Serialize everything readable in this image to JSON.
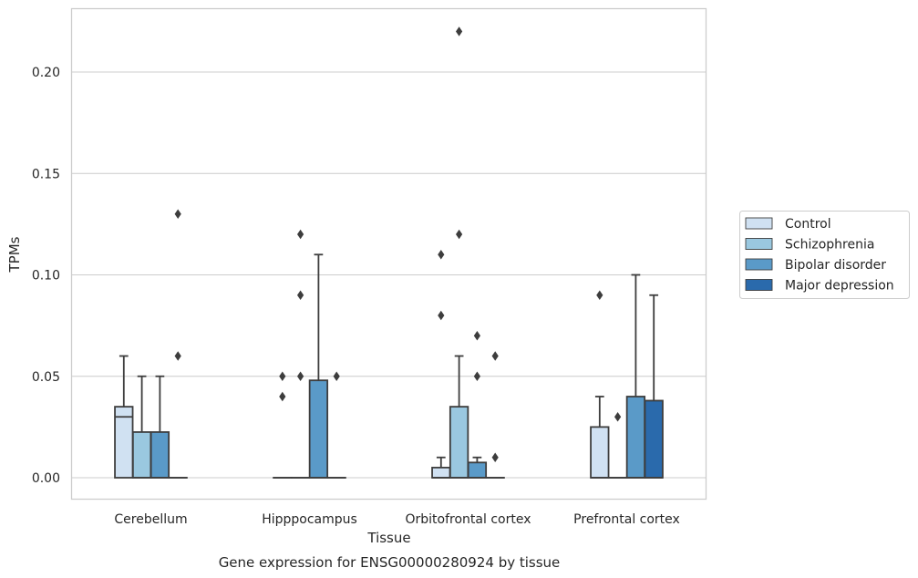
{
  "chart_data": {
    "type": "box",
    "caption": "Gene expression for ENSG00000280924 by tissue",
    "xlabel": "Tissue",
    "ylabel": "TPMs",
    "ylim": [
      -0.011,
      0.232
    ],
    "yticks": [
      0.0,
      0.05,
      0.1,
      0.15,
      0.2
    ],
    "ytick_labels": [
      "0.00",
      "0.05",
      "0.10",
      "0.15",
      "0.20"
    ],
    "grid": "horizontal",
    "legend_position": "right",
    "categories": [
      "Cerebellum",
      "Hipppocampus",
      "Orbitofrontal cortex",
      "Prefrontal cortex"
    ],
    "series": [
      {
        "name": "Control",
        "color": "#d0e1f2",
        "boxes": [
          {
            "q1": 0.0,
            "median": 0.03,
            "q3": 0.035,
            "whisker_low": 0.0,
            "whisker_high": 0.06,
            "outliers": []
          },
          {
            "q1": 0.0,
            "median": 0.0,
            "q3": 0.0,
            "whisker_low": 0.0,
            "whisker_high": 0.0,
            "outliers": [
              0.04,
              0.05
            ]
          },
          {
            "q1": 0.0,
            "median": 0.0,
            "q3": 0.005,
            "whisker_low": 0.0,
            "whisker_high": 0.01,
            "outliers": [
              0.08,
              0.11
            ]
          },
          {
            "q1": 0.0,
            "median": 0.0,
            "q3": 0.025,
            "whisker_low": 0.0,
            "whisker_high": 0.04,
            "outliers": [
              0.09
            ]
          }
        ]
      },
      {
        "name": "Schizophrenia",
        "color": "#9ac8e0",
        "boxes": [
          {
            "q1": 0.0,
            "median": 0.0,
            "q3": 0.0225,
            "whisker_low": 0.0,
            "whisker_high": 0.05,
            "outliers": []
          },
          {
            "q1": 0.0,
            "median": 0.0,
            "q3": 0.0,
            "whisker_low": 0.0,
            "whisker_high": 0.0,
            "outliers": [
              0.05,
              0.09,
              0.12
            ]
          },
          {
            "q1": 0.0,
            "median": 0.0,
            "q3": 0.035,
            "whisker_low": 0.0,
            "whisker_high": 0.06,
            "outliers": [
              0.12,
              0.22
            ]
          },
          {
            "q1": 0.0,
            "median": 0.0,
            "q3": 0.0,
            "whisker_low": 0.0,
            "whisker_high": 0.0,
            "outliers": [
              0.03
            ]
          }
        ]
      },
      {
        "name": "Bipolar disorder",
        "color": "#5a9ac8",
        "boxes": [
          {
            "q1": 0.0,
            "median": 0.0,
            "q3": 0.0225,
            "whisker_low": 0.0,
            "whisker_high": 0.05,
            "outliers": []
          },
          {
            "q1": 0.0,
            "median": 0.0,
            "q3": 0.048,
            "whisker_low": 0.0,
            "whisker_high": 0.11,
            "outliers": []
          },
          {
            "q1": 0.0,
            "median": 0.0,
            "q3": 0.0075,
            "whisker_low": 0.0,
            "whisker_high": 0.01,
            "outliers": [
              0.05,
              0.07
            ]
          },
          {
            "q1": 0.0,
            "median": 0.0,
            "q3": 0.04,
            "whisker_low": 0.0,
            "whisker_high": 0.1,
            "outliers": []
          }
        ]
      },
      {
        "name": "Major depression",
        "color": "#2a6aac",
        "boxes": [
          {
            "q1": 0.0,
            "median": 0.0,
            "q3": 0.0,
            "whisker_low": 0.0,
            "whisker_high": 0.0,
            "outliers": [
              0.06,
              0.13
            ]
          },
          {
            "q1": 0.0,
            "median": 0.0,
            "q3": 0.0,
            "whisker_low": 0.0,
            "whisker_high": 0.0,
            "outliers": [
              0.05
            ]
          },
          {
            "q1": 0.0,
            "median": 0.0,
            "q3": 0.0,
            "whisker_low": 0.0,
            "whisker_high": 0.0,
            "outliers": [
              0.01,
              0.06
            ]
          },
          {
            "q1": 0.0,
            "median": 0.0,
            "q3": 0.038,
            "whisker_low": 0.0,
            "whisker_high": 0.09,
            "outliers": []
          }
        ]
      }
    ]
  }
}
